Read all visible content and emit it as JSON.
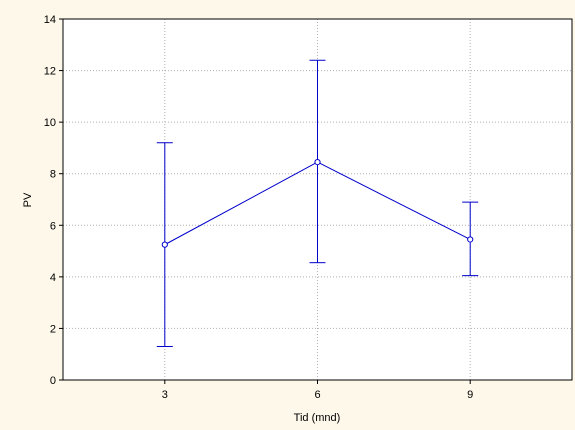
{
  "chart_data": {
    "type": "line",
    "xlabel": "Tid (mnd)",
    "ylabel": "PV",
    "x": [
      3,
      6,
      9
    ],
    "xticks": [
      3,
      6,
      9
    ],
    "xlim": [
      1.0,
      11.0
    ],
    "ylim": [
      0,
      14
    ],
    "yticks": [
      0,
      2,
      4,
      6,
      8,
      10,
      12,
      14
    ],
    "grid": true,
    "series": [
      {
        "values": [
          5.25,
          8.45,
          5.45
        ],
        "lower": [
          1.3,
          4.55,
          4.05
        ],
        "upper": [
          9.2,
          12.4,
          6.9
        ]
      }
    ],
    "colors": {
      "line": "#0000cc",
      "marker_fill": "#ffffff",
      "grid": "#b0b0b0",
      "plot_bg": "#ffffff",
      "page_bg": "#fdf8ea"
    }
  }
}
